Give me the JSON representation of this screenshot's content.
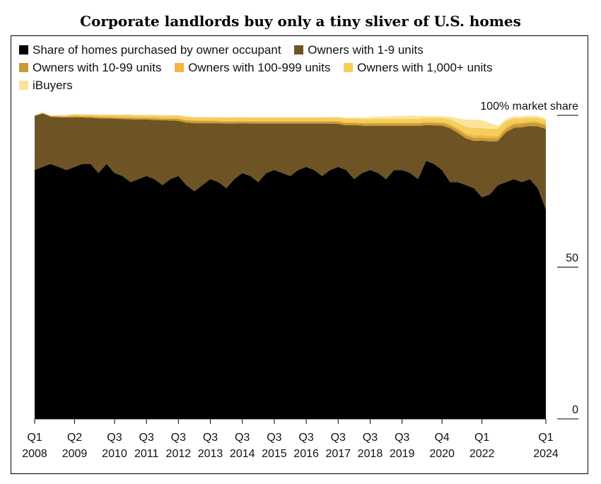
{
  "title": "Corporate landlords buy only a tiny sliver of U.S. homes",
  "colors": {
    "owner_occupant": "#000000",
    "owners_1_9": "#6e5425",
    "owners_10_99": "#c99a35",
    "owners_100_999": "#f2b73f",
    "owners_1000_plus": "#f5cf5c",
    "ibuyers": "#fbe39a"
  },
  "chart_data": {
    "type": "area",
    "stacked": true,
    "title": "Corporate landlords buy only a tiny sliver of U.S. homes",
    "ylabel": "",
    "ylim": [
      0,
      100
    ],
    "y_ticks": [
      {
        "value": 100,
        "label": "100% market share"
      },
      {
        "value": 50,
        "label": "50"
      },
      {
        "value": 0,
        "label": "0"
      }
    ],
    "x_ticks": [
      {
        "index": 0,
        "label1": "Q1",
        "label2": "2008"
      },
      {
        "index": 5,
        "label1": "Q2",
        "label2": "2009"
      },
      {
        "index": 10,
        "label1": "Q3",
        "label2": "2010"
      },
      {
        "index": 14,
        "label1": "Q3",
        "label2": "2011"
      },
      {
        "index": 18,
        "label1": "Q3",
        "label2": "2012"
      },
      {
        "index": 22,
        "label1": "Q3",
        "label2": "2013"
      },
      {
        "index": 26,
        "label1": "Q3",
        "label2": "2014"
      },
      {
        "index": 30,
        "label1": "Q3",
        "label2": "2015"
      },
      {
        "index": 34,
        "label1": "Q3",
        "label2": "2016"
      },
      {
        "index": 38,
        "label1": "Q3",
        "label2": "2017"
      },
      {
        "index": 42,
        "label1": "Q3",
        "label2": "2018"
      },
      {
        "index": 46,
        "label1": "Q3",
        "label2": "2019"
      },
      {
        "index": 51,
        "label1": "Q4",
        "label2": "2020"
      },
      {
        "index": 56,
        "label1": "Q1",
        "label2": "2022"
      },
      {
        "index": 64,
        "label1": "Q1",
        "label2": "2024"
      }
    ],
    "x_count": 65,
    "legend_position": "top-left",
    "series": [
      {
        "name": "Share of homes purchased by owner occupant",
        "color_key": "owner_occupant",
        "values": [
          82,
          83,
          84,
          83,
          82,
          83,
          84,
          84,
          81,
          84,
          81,
          80,
          78,
          79,
          80,
          79,
          77,
          79,
          80,
          77,
          75,
          77,
          79,
          78,
          76,
          79,
          81,
          80,
          78,
          81,
          82,
          81,
          80,
          82,
          83,
          82,
          80,
          82,
          83,
          82,
          79,
          81,
          82,
          81,
          79,
          82,
          82,
          81,
          79,
          85,
          84,
          82,
          78,
          78,
          77,
          76,
          73,
          74,
          77,
          78,
          79,
          78,
          79,
          76,
          69
        ]
      },
      {
        "name": "Owners with 1-9 units",
        "color_key": "owners_1_9",
        "values": [
          17.8,
          17.6,
          15.5,
          16.4,
          17.3,
          16.4,
          15.3,
          15.2,
          18,
          15,
          17.9,
          18.8,
          20.7,
          19.6,
          18.6,
          19.5,
          21.4,
          19.3,
          18.2,
          20.6,
          22.4,
          20.4,
          18.4,
          19.4,
          21.3,
          18.3,
          16.4,
          17.3,
          19.3,
          16.3,
          15.3,
          16.3,
          17.3,
          15.3,
          14.3,
          15.3,
          17.3,
          15.3,
          14.2,
          14.7,
          17.8,
          15.6,
          14.5,
          15.6,
          17.5,
          14.6,
          14.5,
          15.6,
          17.5,
          11.8,
          12.7,
          14.6,
          17.8,
          16.2,
          15.4,
          15.6,
          18.7,
          17.4,
          14.5,
          16.4,
          16.9,
          18.1,
          17.5,
          20.4,
          26.5
        ]
      },
      {
        "name": "Owners with 10-99 units",
        "color_key": "owners_10_99",
        "values": [
          0.1,
          0.2,
          0.2,
          0.2,
          0.3,
          0.3,
          0.3,
          0.4,
          0.4,
          0.4,
          0.4,
          0.4,
          0.5,
          0.5,
          0.5,
          0.5,
          0.5,
          0.6,
          0.6,
          0.7,
          0.7,
          0.7,
          0.7,
          0.6,
          0.6,
          0.6,
          0.6,
          0.6,
          0.6,
          0.6,
          0.6,
          0.6,
          0.6,
          0.6,
          0.6,
          0.6,
          0.6,
          0.6,
          0.7,
          0.7,
          0.7,
          0.7,
          0.8,
          0.8,
          0.8,
          0.8,
          0.8,
          0.8,
          0.8,
          0.8,
          0.8,
          0.9,
          0.9,
          1.0,
          1.0,
          1.0,
          1.0,
          1.0,
          1.0,
          1.1,
          1.1,
          1.1,
          1.1,
          1.1,
          1.2
        ]
      },
      {
        "name": "Owners with 100-999 units",
        "color_key": "owners_100_999",
        "values": [
          0.05,
          0.1,
          0.15,
          0.2,
          0.2,
          0.3,
          0.3,
          0.3,
          0.3,
          0.3,
          0.3,
          0.3,
          0.3,
          0.3,
          0.3,
          0.3,
          0.3,
          0.3,
          0.3,
          0.3,
          0.3,
          0.3,
          0.3,
          0.3,
          0.3,
          0.3,
          0.3,
          0.3,
          0.3,
          0.3,
          0.3,
          0.3,
          0.3,
          0.3,
          0.3,
          0.3,
          0.3,
          0.3,
          0.3,
          0.3,
          0.3,
          0.3,
          0.3,
          0.3,
          0.3,
          0.3,
          0.3,
          0.3,
          0.3,
          0.3,
          0.3,
          0.4,
          0.5,
          0.6,
          0.7,
          0.8,
          0.8,
          0.8,
          0.8,
          0.7,
          0.6,
          0.5,
          0.5,
          0.5,
          0.5
        ]
      },
      {
        "name": "Owners with 1,000+ units",
        "color_key": "owners_1000_plus",
        "values": [
          0,
          0,
          0.1,
          0.3,
          0.3,
          0.4,
          0.4,
          0.4,
          0.5,
          0.5,
          0.6,
          0.7,
          0.7,
          0.7,
          0.7,
          0.8,
          0.8,
          0.8,
          0.9,
          1.0,
          1.0,
          1.0,
          1.0,
          1.0,
          1.1,
          1.1,
          1.0,
          1.1,
          1.1,
          1.1,
          1.1,
          1.1,
          1.1,
          1.1,
          1.1,
          1.1,
          1.1,
          1.1,
          1.1,
          1.2,
          1.2,
          1.2,
          1.2,
          1.2,
          1.2,
          1.2,
          1.2,
          1.2,
          1.2,
          1.3,
          1.3,
          1.3,
          1.5,
          1.7,
          2.1,
          2.4,
          2.3,
          2.4,
          2.3,
          1.9,
          1.5,
          1.3,
          1.2,
          1.2,
          1.2
        ]
      },
      {
        "name": "iBuyers",
        "color_key": "ibuyers",
        "values": [
          0,
          0,
          0,
          0,
          0,
          0,
          0,
          0,
          0,
          0,
          0,
          0,
          0,
          0,
          0,
          0,
          0,
          0,
          0,
          0,
          0,
          0,
          0,
          0,
          0,
          0,
          0,
          0,
          0,
          0,
          0,
          0,
          0,
          0,
          0,
          0,
          0,
          0.1,
          0.2,
          0.3,
          0.4,
          0.5,
          0.6,
          0.7,
          0.8,
          0.9,
          1.0,
          1.0,
          1.0,
          0.6,
          0.6,
          0.5,
          0.8,
          1.5,
          2.4,
          2.8,
          2.6,
          1.8,
          1.0,
          0.7,
          0.6,
          0.6,
          0.6,
          0.6,
          0.5
        ]
      }
    ]
  }
}
